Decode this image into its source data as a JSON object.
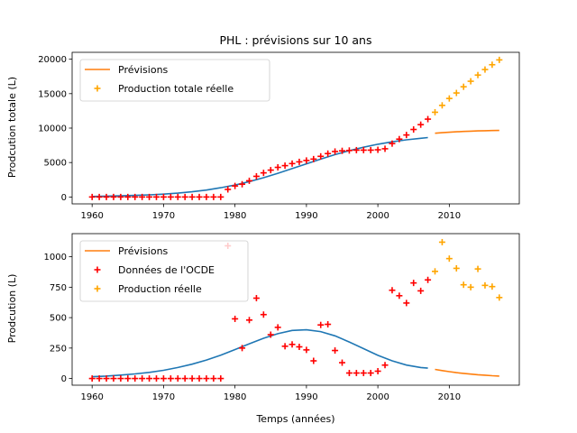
{
  "chart_data": [
    {
      "type": "line",
      "title": "PHL : prévisions sur 10 ans",
      "xlabel": "",
      "ylabel": "Prodcution totale (L)",
      "xlim": [
        1957.2,
        2019.8
      ],
      "ylim": [
        -1000,
        21000
      ],
      "xticks": [
        1960,
        1970,
        1980,
        1990,
        2000,
        2010
      ],
      "yticks": [
        0,
        5000,
        10000,
        15000,
        20000
      ],
      "legend_position": "top-left",
      "series": [
        {
          "name": "",
          "kind": "line",
          "color": "#1f77b4",
          "x": [
            1960,
            1962,
            1964,
            1966,
            1968,
            1970,
            1972,
            1974,
            1976,
            1978,
            1980,
            1982,
            1984,
            1986,
            1988,
            1990,
            1992,
            1994,
            1996,
            1998,
            2000,
            2002,
            2004,
            2006,
            2007
          ],
          "y": [
            80,
            120,
            170,
            230,
            310,
            420,
            560,
            760,
            1010,
            1340,
            1740,
            2230,
            2800,
            3440,
            4120,
            4820,
            5500,
            6150,
            6730,
            7230,
            7660,
            8010,
            8300,
            8520,
            8620
          ]
        },
        {
          "name": "Prévisions",
          "kind": "line",
          "color": "#ff7f0e",
          "x": [
            2008,
            2009,
            2010,
            2011,
            2012,
            2013,
            2014,
            2015,
            2016,
            2017
          ],
          "y": [
            9250,
            9330,
            9400,
            9460,
            9510,
            9550,
            9590,
            9620,
            9640,
            9660
          ]
        },
        {
          "name": "Production totale réelle",
          "kind": "scatter",
          "color": "#ffa500",
          "x": [
            2008,
            2009,
            2010,
            2011,
            2012,
            2013,
            2014,
            2015,
            2016,
            2017
          ],
          "y": [
            12300,
            13300,
            14300,
            15100,
            16000,
            16800,
            17700,
            18500,
            19200,
            19900
          ]
        },
        {
          "name": "",
          "kind": "scatter",
          "color": "#ff0000",
          "x": [
            1960,
            1961,
            1962,
            1963,
            1964,
            1965,
            1966,
            1967,
            1968,
            1969,
            1970,
            1971,
            1972,
            1973,
            1974,
            1975,
            1976,
            1977,
            1978,
            1979,
            1980,
            1981,
            1982,
            1983,
            1984,
            1985,
            1986,
            1987,
            1988,
            1989,
            1990,
            1991,
            1992,
            1993,
            1994,
            1995,
            1996,
            1997,
            1998,
            1999,
            2000,
            2001,
            2002,
            2003,
            2004,
            2005,
            2006,
            2007
          ],
          "y": [
            0,
            0,
            0,
            0,
            0,
            0,
            0,
            0,
            0,
            0,
            0,
            0,
            0,
            0,
            0,
            0,
            0,
            0,
            0,
            1100,
            1600,
            1850,
            2350,
            3000,
            3500,
            3900,
            4300,
            4550,
            4850,
            5100,
            5300,
            5500,
            5900,
            6300,
            6600,
            6700,
            6750,
            6800,
            6800,
            6800,
            6850,
            7000,
            7750,
            8400,
            9000,
            9800,
            10500,
            11300
          ]
        }
      ]
    },
    {
      "type": "scatter",
      "title": "",
      "xlabel": "Temps (années)",
      "ylabel": "Prodcution (L)",
      "xlim": [
        1957.2,
        2019.8
      ],
      "ylim": [
        -55,
        1190
      ],
      "xticks": [
        1960,
        1970,
        1980,
        1990,
        2000,
        2010
      ],
      "yticks": [
        0,
        250,
        500,
        750,
        1000
      ],
      "legend_position": "top-left",
      "series": [
        {
          "name": "",
          "kind": "line",
          "color": "#1f77b4",
          "x": [
            1960,
            1962,
            1964,
            1966,
            1968,
            1970,
            1972,
            1974,
            1976,
            1978,
            1980,
            1982,
            1984,
            1986,
            1988,
            1990,
            1992,
            1994,
            1996,
            1998,
            2000,
            2002,
            2004,
            2006,
            2007
          ],
          "y": [
            15,
            20,
            28,
            38,
            50,
            67,
            90,
            118,
            152,
            192,
            238,
            285,
            330,
            368,
            395,
            400,
            385,
            350,
            300,
            245,
            190,
            145,
            110,
            90,
            85
          ]
        },
        {
          "name": "Prévisions",
          "kind": "line",
          "color": "#ff7f0e",
          "x": [
            2008,
            2009,
            2010,
            2011,
            2012,
            2013,
            2014,
            2015,
            2016,
            2017
          ],
          "y": [
            75,
            65,
            56,
            48,
            42,
            36,
            31,
            27,
            23,
            20
          ]
        },
        {
          "name": "Données de l'OCDE",
          "kind": "scatter",
          "color": "#ff0000",
          "x": [
            1960,
            1961,
            1962,
            1963,
            1964,
            1965,
            1966,
            1967,
            1968,
            1969,
            1970,
            1971,
            1972,
            1973,
            1974,
            1975,
            1976,
            1977,
            1978,
            1979,
            1980,
            1981,
            1982,
            1983,
            1984,
            1985,
            1986,
            1987,
            1988,
            1989,
            1990,
            1991,
            1992,
            1993,
            1994,
            1995,
            1996,
            1997,
            1998,
            1999,
            2000,
            2001,
            2002,
            2003,
            2004,
            2005,
            2006,
            2007
          ],
          "y": [
            0,
            0,
            0,
            0,
            0,
            0,
            0,
            0,
            0,
            0,
            0,
            0,
            0,
            0,
            0,
            0,
            0,
            0,
            0,
            1090,
            490,
            250,
            480,
            660,
            525,
            360,
            420,
            265,
            280,
            260,
            235,
            145,
            440,
            445,
            230,
            130,
            45,
            45,
            45,
            45,
            60,
            110,
            725,
            680,
            620,
            785,
            720,
            810
          ]
        },
        {
          "name": "Production réelle",
          "kind": "scatter",
          "color": "#ffa500",
          "x": [
            2008,
            2009,
            2010,
            2011,
            2012,
            2013,
            2014,
            2015,
            2016,
            2017
          ],
          "y": [
            880,
            1120,
            985,
            905,
            770,
            750,
            900,
            765,
            755,
            665
          ]
        }
      ]
    }
  ]
}
